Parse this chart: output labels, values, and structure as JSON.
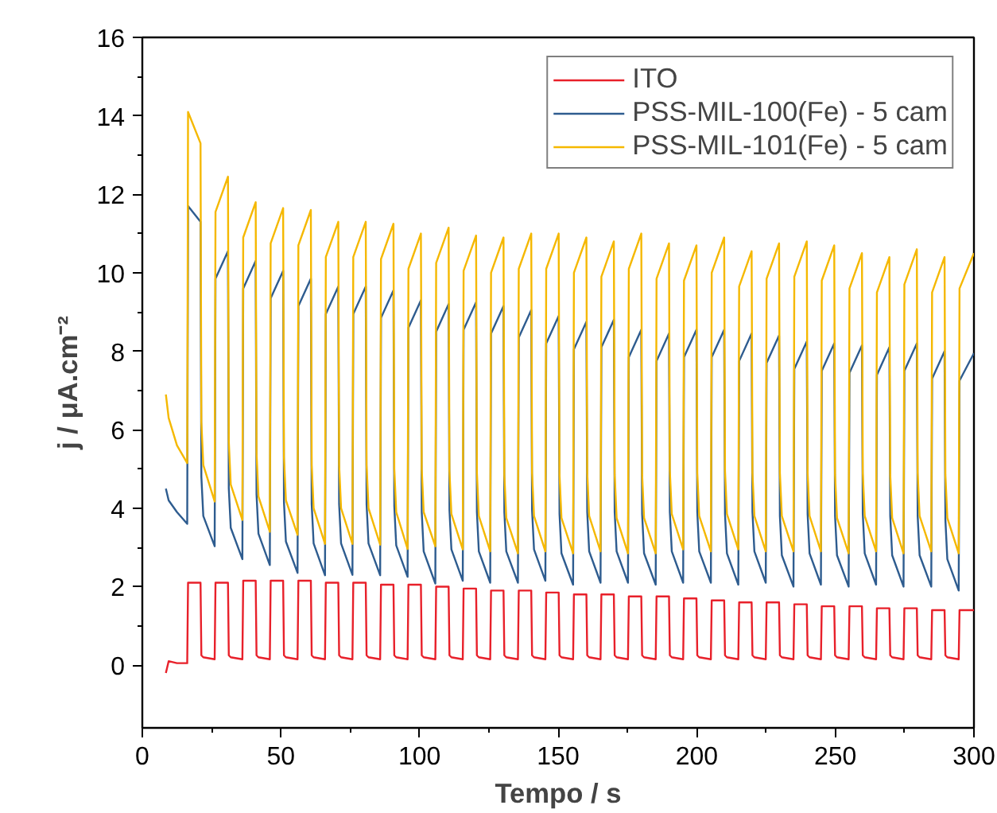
{
  "chart_data": {
    "type": "line",
    "xlabel": "Tempo / s",
    "ylabel": "j / μA.cm⁻²",
    "xlim": [
      0,
      300
    ],
    "ylim": [
      -1.6,
      16
    ],
    "xticks": [
      0,
      50,
      100,
      150,
      200,
      250,
      300
    ],
    "yticks": [
      0,
      2,
      4,
      6,
      8,
      10,
      12,
      14,
      16
    ],
    "grid": false,
    "legend": "top right",
    "marker": "none",
    "line_style": "solid",
    "x": [
      8.5,
      9.5,
      12.5,
      16.2,
      16.5,
      21.0,
      21.3,
      22.0,
      26.1,
      26.4,
      30.9,
      31.2,
      31.9,
      36.1,
      36.4,
      40.9,
      41.2,
      41.9,
      46.0,
      46.3,
      50.8,
      51.1,
      51.8,
      56.0,
      56.3,
      60.8,
      61.1,
      61.8,
      65.9,
      66.2,
      70.7,
      71.0,
      71.7,
      75.8,
      76.1,
      80.6,
      80.9,
      81.6,
      85.8,
      86.1,
      90.6,
      90.9,
      91.6,
      95.7,
      96.0,
      100.5,
      100.8,
      101.5,
      105.7,
      106.0,
      110.5,
      110.8,
      111.5,
      115.6,
      115.9,
      120.4,
      120.7,
      121.4,
      125.5,
      125.8,
      130.3,
      130.6,
      131.3,
      135.5,
      135.8,
      140.3,
      140.6,
      141.3,
      145.4,
      145.7,
      150.2,
      150.5,
      151.2,
      155.4,
      155.7,
      160.2,
      160.5,
      161.2,
      165.3,
      165.6,
      170.1,
      170.4,
      171.1,
      175.2,
      175.5,
      180.0,
      180.3,
      181.0,
      185.2,
      185.5,
      190.0,
      190.3,
      191.0,
      195.1,
      195.4,
      199.9,
      200.2,
      200.9,
      205.1,
      205.4,
      209.9,
      210.2,
      210.9,
      215.0,
      215.3,
      219.8,
      220.1,
      220.8,
      224.9,
      225.2,
      229.7,
      230.0,
      230.7,
      234.9,
      235.2,
      239.7,
      240.0,
      240.7,
      244.8,
      245.1,
      249.6,
      249.9,
      250.6,
      254.8,
      255.1,
      259.6,
      259.9,
      260.6,
      264.7,
      265.0,
      269.5,
      269.8,
      270.5,
      274.6,
      274.9,
      279.4,
      279.7,
      280.4,
      284.6,
      284.9,
      289.4,
      289.7,
      290.4,
      294.5,
      294.8,
      300
    ],
    "series": [
      {
        "name": "ITO",
        "color": "#e8202a",
        "values": [
          -0.2,
          0.1,
          0.05,
          0.05,
          2.1,
          2.1,
          0.25,
          0.2,
          0.15,
          2.1,
          2.1,
          0.25,
          0.2,
          0.15,
          2.15,
          2.15,
          0.25,
          0.2,
          0.15,
          2.15,
          2.15,
          0.25,
          0.2,
          0.15,
          2.15,
          2.15,
          0.25,
          0.2,
          0.15,
          2.1,
          2.1,
          0.25,
          0.2,
          0.15,
          2.1,
          2.1,
          0.25,
          0.2,
          0.15,
          2.05,
          2.05,
          0.25,
          0.2,
          0.15,
          2.05,
          2.05,
          0.25,
          0.2,
          0.15,
          2.0,
          2.0,
          0.25,
          0.2,
          0.15,
          1.95,
          1.95,
          0.25,
          0.2,
          0.15,
          1.9,
          1.9,
          0.25,
          0.2,
          0.15,
          1.9,
          1.9,
          0.25,
          0.2,
          0.15,
          1.85,
          1.85,
          0.25,
          0.2,
          0.15,
          1.8,
          1.8,
          0.25,
          0.2,
          0.15,
          1.8,
          1.8,
          0.25,
          0.2,
          0.15,
          1.75,
          1.75,
          0.25,
          0.2,
          0.15,
          1.75,
          1.75,
          0.25,
          0.2,
          0.15,
          1.7,
          1.7,
          0.25,
          0.2,
          0.15,
          1.65,
          1.65,
          0.25,
          0.2,
          0.15,
          1.6,
          1.6,
          0.25,
          0.2,
          0.15,
          1.6,
          1.6,
          0.25,
          0.2,
          0.15,
          1.55,
          1.55,
          0.25,
          0.2,
          0.15,
          1.5,
          1.5,
          0.25,
          0.2,
          0.15,
          1.5,
          1.5,
          0.25,
          0.2,
          0.15,
          1.45,
          1.45,
          0.25,
          0.2,
          0.15,
          1.45,
          1.45,
          0.25,
          0.2,
          0.15,
          1.4,
          1.4,
          0.25,
          0.2,
          0.15,
          1.4,
          1.4
        ]
      },
      {
        "name": "PSS-MIL-100(Fe) - 5 cam",
        "color": "#2e5c8f",
        "values": [
          4.5,
          4.2,
          3.9,
          3.6,
          11.7,
          11.3,
          4.8,
          3.8,
          3.03,
          9.85,
          10.55,
          4.5,
          3.5,
          2.7,
          9.6,
          10.3,
          4.35,
          3.35,
          2.55,
          9.35,
          10.05,
          4.15,
          3.15,
          2.35,
          9.15,
          9.85,
          4.1,
          3.1,
          2.29,
          8.95,
          9.65,
          4.1,
          3.1,
          2.3,
          8.95,
          9.65,
          4.1,
          3.1,
          2.29,
          8.85,
          9.55,
          4.05,
          3.05,
          2.25,
          8.6,
          9.3,
          3.9,
          2.9,
          2.08,
          8.5,
          9.2,
          3.95,
          2.95,
          2.15,
          8.55,
          9.25,
          3.9,
          2.9,
          2.1,
          8.45,
          9.15,
          3.9,
          2.9,
          2.1,
          8.35,
          9.05,
          3.95,
          2.95,
          2.15,
          8.2,
          8.9,
          3.85,
          2.85,
          2.05,
          8.05,
          8.75,
          3.9,
          2.9,
          2.1,
          8.1,
          8.8,
          3.9,
          2.9,
          2.1,
          7.85,
          8.55,
          3.85,
          2.85,
          2.05,
          7.75,
          8.45,
          3.9,
          2.9,
          2.1,
          7.85,
          8.55,
          3.9,
          2.9,
          2.1,
          7.85,
          8.55,
          3.85,
          2.85,
          2.05,
          7.75,
          8.45,
          3.9,
          2.9,
          2.1,
          7.7,
          8.4,
          3.8,
          2.8,
          2.0,
          7.55,
          8.25,
          3.85,
          2.85,
          2.05,
          7.5,
          8.2,
          3.8,
          2.8,
          2.0,
          7.45,
          8.15,
          3.85,
          2.85,
          2.05,
          7.4,
          8.1,
          3.8,
          2.8,
          2.0,
          7.5,
          8.2,
          3.8,
          2.8,
          2.0,
          7.3,
          8.0,
          3.7,
          2.7,
          1.9,
          7.25,
          7.95
        ]
      },
      {
        "name": "PSS-MIL-101(Fe) - 5 cam",
        "color": "#f5b800",
        "values": [
          6.9,
          6.3,
          5.6,
          5.15,
          14.1,
          13.3,
          6.2,
          5.1,
          4.17,
          11.55,
          12.45,
          5.7,
          4.6,
          3.7,
          10.9,
          11.8,
          5.4,
          4.3,
          3.4,
          10.75,
          11.65,
          5.3,
          4.2,
          3.32,
          10.7,
          11.6,
          5.1,
          4.0,
          3.09,
          10.4,
          11.3,
          5.1,
          4.0,
          3.09,
          10.4,
          11.3,
          5.1,
          4.0,
          3.07,
          10.35,
          11.25,
          5.0,
          3.9,
          2.96,
          10.1,
          11.0,
          5.0,
          3.9,
          3.03,
          10.25,
          11.15,
          4.95,
          3.85,
          2.95,
          10.05,
          10.95,
          4.9,
          3.8,
          2.9,
          10.0,
          10.9,
          4.85,
          3.75,
          2.85,
          10.1,
          11.0,
          4.9,
          3.8,
          2.9,
          10.1,
          11.0,
          4.85,
          3.75,
          2.85,
          10.0,
          10.9,
          4.9,
          3.8,
          2.9,
          9.9,
          10.8,
          4.85,
          3.75,
          2.85,
          10.1,
          11.0,
          4.85,
          3.75,
          2.85,
          9.85,
          10.75,
          4.95,
          3.85,
          2.95,
          9.8,
          10.7,
          4.9,
          3.8,
          2.9,
          10.0,
          10.9,
          4.95,
          3.85,
          2.95,
          9.65,
          10.55,
          4.9,
          3.8,
          2.9,
          9.85,
          10.75,
          4.9,
          3.8,
          2.9,
          9.9,
          10.8,
          4.9,
          3.8,
          2.9,
          9.8,
          10.7,
          4.85,
          3.75,
          2.85,
          9.6,
          10.5,
          4.9,
          3.8,
          2.9,
          9.5,
          10.4,
          4.85,
          3.75,
          2.85,
          9.7,
          10.6,
          4.9,
          3.8,
          2.9,
          9.5,
          10.4,
          4.85,
          3.75,
          2.85,
          9.6,
          10.5
        ]
      }
    ]
  }
}
